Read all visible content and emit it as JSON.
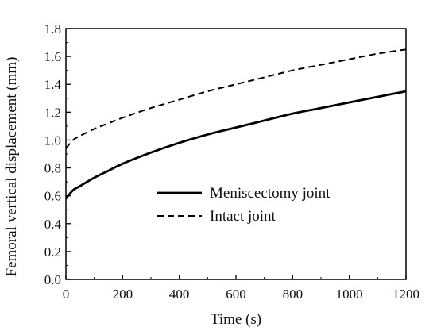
{
  "chart_data": {
    "type": "line",
    "title": "",
    "xlabel": "Time (s)",
    "ylabel": "Femoral vertical displacement (mm)",
    "xlim": [
      0,
      1200
    ],
    "ylim": [
      0.0,
      1.8
    ],
    "xticks": [
      0,
      200,
      400,
      600,
      800,
      1000,
      1200
    ],
    "yticks": [
      0.0,
      0.2,
      0.4,
      0.6,
      0.8,
      1.0,
      1.2,
      1.4,
      1.6,
      1.8
    ],
    "x_tick_labels": [
      "0",
      "200",
      "400",
      "600",
      "800",
      "1000",
      "1200"
    ],
    "y_tick_labels": [
      "0.0",
      "0.2",
      "0.4",
      "0.6",
      "0.8",
      "1.0",
      "1.2",
      "1.4",
      "1.6",
      "1.8"
    ],
    "grid": false,
    "legend_position": "center-right",
    "series": [
      {
        "name": "Meniscectomy joint",
        "style": "solid",
        "color": "#000000",
        "x": [
          0,
          25,
          50,
          100,
          150,
          200,
          300,
          400,
          500,
          600,
          700,
          800,
          900,
          1000,
          1100,
          1200
        ],
        "y": [
          0.58,
          0.64,
          0.67,
          0.73,
          0.78,
          0.83,
          0.91,
          0.98,
          1.04,
          1.09,
          1.14,
          1.19,
          1.23,
          1.27,
          1.31,
          1.35
        ]
      },
      {
        "name": "Intact joint",
        "style": "dashed",
        "color": "#000000",
        "x": [
          0,
          25,
          50,
          100,
          150,
          200,
          300,
          400,
          500,
          600,
          700,
          800,
          900,
          1000,
          1100,
          1200
        ],
        "y": [
          0.94,
          1.0,
          1.03,
          1.08,
          1.12,
          1.16,
          1.23,
          1.29,
          1.35,
          1.4,
          1.45,
          1.5,
          1.54,
          1.58,
          1.62,
          1.65
        ]
      }
    ]
  }
}
